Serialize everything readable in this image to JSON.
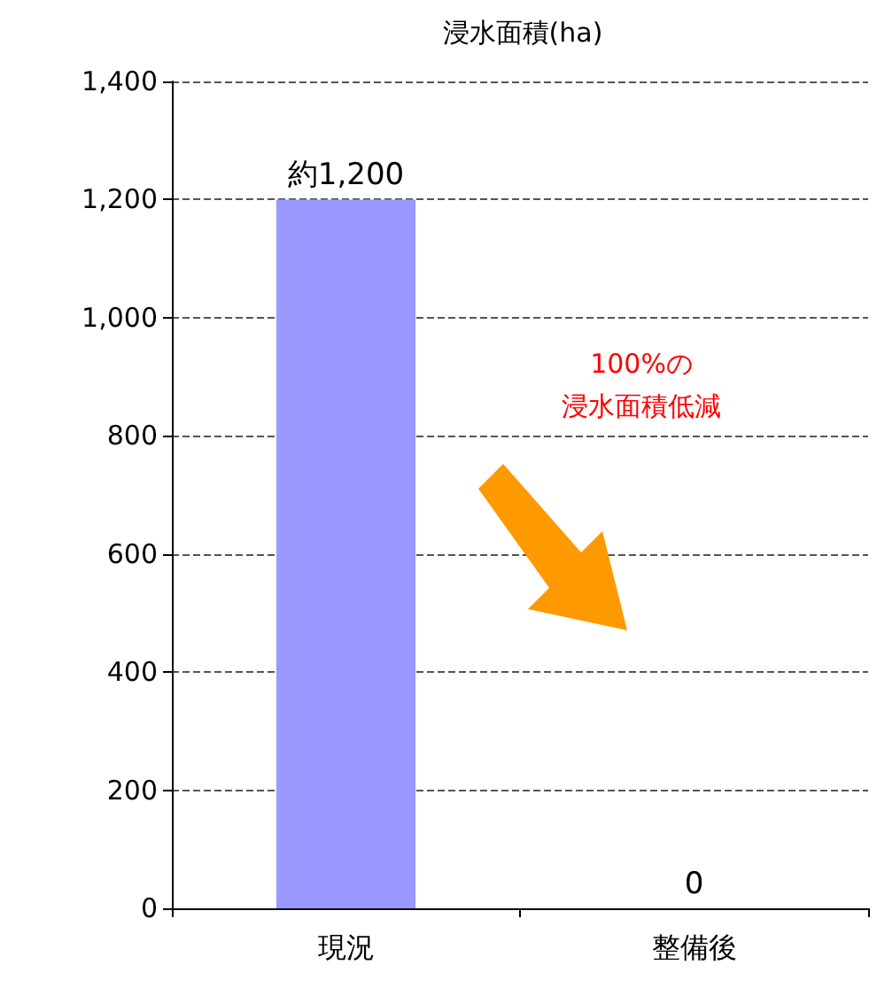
{
  "chart_data": {
    "type": "bar",
    "title": "浸水面積(ha)",
    "categories": [
      "現況",
      "整備後"
    ],
    "values": [
      1200,
      0
    ],
    "value_labels": [
      "約1,200",
      "0"
    ],
    "color": "#9999ff",
    "ylim": [
      0,
      1400
    ],
    "yticks": [
      0,
      200,
      400,
      600,
      800,
      {
        "value": 1000,
        "label": "1,000"
      },
      {
        "value": 1200,
        "label": "1,200"
      },
      {
        "value": 1400,
        "label": "1,400"
      }
    ],
    "grid": "y",
    "annotations": [
      "100%の",
      "浸水面積低減"
    ]
  }
}
